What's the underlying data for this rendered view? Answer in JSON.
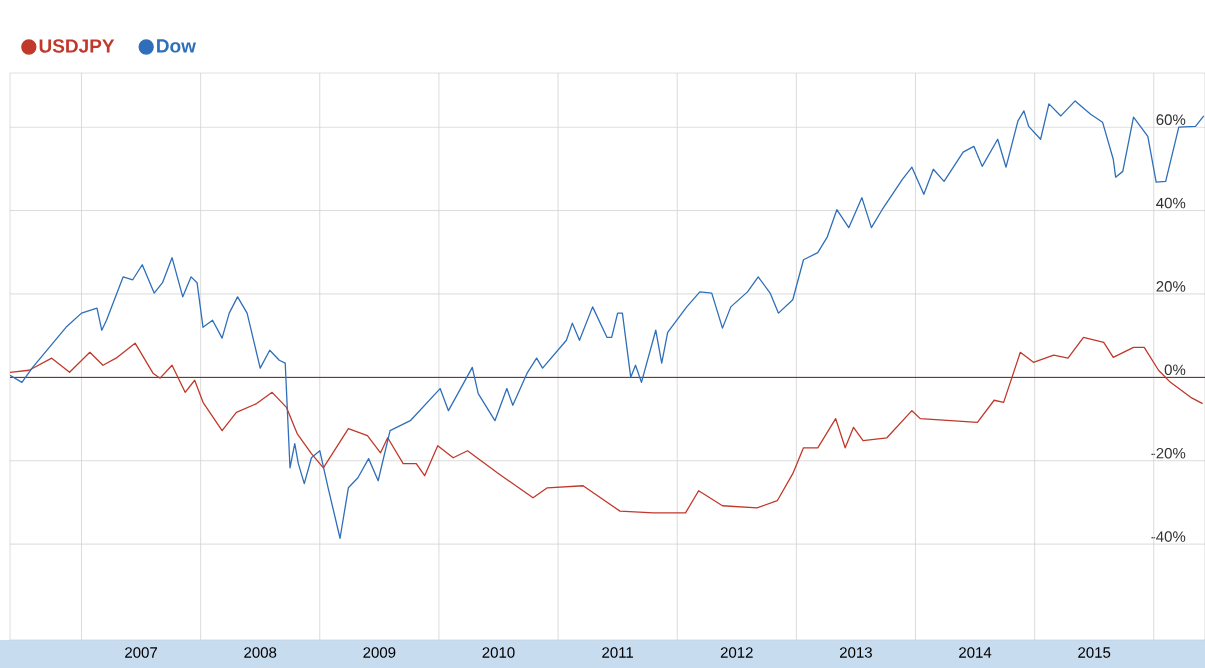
{
  "chart_data": {
    "type": "line",
    "xlim": [
      2006.4,
      2016.43
    ],
    "ylim": [
      -63,
      73
    ],
    "xticks": [
      {
        "value": 2007,
        "label": null
      },
      {
        "value": 2008,
        "label": null
      },
      {
        "value": 2009,
        "label": null
      },
      {
        "value": 2010,
        "label": null
      },
      {
        "value": 2011,
        "label": null
      },
      {
        "value": 2012,
        "label": null
      },
      {
        "value": 2013,
        "label": null
      },
      {
        "value": 2014,
        "label": null
      },
      {
        "value": 2015,
        "label": null
      },
      {
        "value": 2016,
        "label": null
      },
      {
        "value": 2007.5,
        "label": "2007"
      },
      {
        "value": 2008.5,
        "label": "2008"
      },
      {
        "value": 2009.5,
        "label": "2009"
      },
      {
        "value": 2010.5,
        "label": "2010"
      },
      {
        "value": 2011.5,
        "label": "2011"
      },
      {
        "value": 2012.5,
        "label": "2012"
      },
      {
        "value": 2013.5,
        "label": "2013"
      },
      {
        "value": 2014.5,
        "label": "2014"
      },
      {
        "value": 2015.5,
        "label": "2015"
      }
    ],
    "yticks": [
      {
        "value": -40,
        "label": "-40%"
      },
      {
        "value": -20,
        "label": "-20%"
      },
      {
        "value": 0,
        "label": "0%"
      },
      {
        "value": 20,
        "label": "20%"
      },
      {
        "value": 40,
        "label": "40%"
      },
      {
        "value": 60,
        "label": "60%"
      }
    ],
    "grid": true,
    "legend": "top left",
    "ref_lines": [
      {
        "axis": "y",
        "value": 0,
        "color": "#6b3a3a"
      }
    ],
    "series": [
      {
        "name": "USDJPY",
        "color": "#c0392b",
        "x": [
          2006.4,
          2006.56,
          2006.75,
          2006.9,
          2007.07,
          2007.18,
          2007.29,
          2007.45,
          2007.6,
          2007.66,
          2007.76,
          2007.87,
          2007.95,
          2008.02,
          2008.18,
          2008.3,
          2008.47,
          2008.6,
          2008.72,
          2008.81,
          2008.93,
          2009.03,
          2009.24,
          2009.4,
          2009.51,
          2009.57,
          2009.7,
          2009.81,
          2009.88,
          2009.99,
          2010.12,
          2010.24,
          2010.49,
          2010.79,
          2010.91,
          2011.21,
          2011.52,
          2011.8,
          2012.07,
          2012.18,
          2012.38,
          2012.67,
          2012.84,
          2012.97,
          2013.06,
          2013.18,
          2013.33,
          2013.41,
          2013.48,
          2013.56,
          2013.76,
          2013.97,
          2014.04,
          2014.52,
          2014.66,
          2014.74,
          2014.88,
          2014.99,
          2015.16,
          2015.28,
          2015.41,
          2015.58,
          2015.66,
          2015.83,
          2015.92,
          2016.04,
          2016.14,
          2016.31,
          2016.41
        ],
        "values": [
          1.2,
          1.7,
          4.6,
          1.2,
          6.0,
          2.9,
          4.6,
          8.2,
          1.0,
          -0.2,
          2.9,
          -3.6,
          -0.7,
          -6.0,
          -12.8,
          -8.4,
          -6.3,
          -3.6,
          -7.2,
          -13.5,
          -18.3,
          -21.7,
          -12.3,
          -14.0,
          -18.1,
          -14.5,
          -20.7,
          -20.7,
          -23.6,
          -16.4,
          -19.3,
          -17.6,
          -22.9,
          -28.9,
          -26.5,
          -26.0,
          -32.1,
          -32.5,
          -32.5,
          -27.2,
          -30.8,
          -31.3,
          -29.6,
          -23.1,
          -16.9,
          -16.9,
          -9.9,
          -16.9,
          -12.0,
          -15.2,
          -14.5,
          -8.0,
          -9.9,
          -10.8,
          -5.5,
          -6.0,
          6.0,
          3.6,
          5.3,
          4.6,
          9.6,
          8.4,
          4.8,
          7.2,
          7.2,
          1.7,
          -1.2,
          -4.8,
          -6.3
        ]
      },
      {
        "name": "Dow",
        "color": "#2f6fba",
        "x": [
          2006.4,
          2006.5,
          2006.59,
          2006.73,
          2006.87,
          2007.0,
          2007.13,
          2007.17,
          2007.21,
          2007.35,
          2007.43,
          2007.51,
          2007.61,
          2007.68,
          2007.76,
          2007.85,
          2007.92,
          2007.97,
          2008.02,
          2008.1,
          2008.18,
          2008.24,
          2008.31,
          2008.39,
          2008.5,
          2008.58,
          2008.66,
          2008.71,
          2008.75,
          2008.79,
          2008.82,
          2008.87,
          2008.93,
          2009.0,
          2009.07,
          2009.17,
          2009.24,
          2009.32,
          2009.41,
          2009.49,
          2009.59,
          2009.76,
          2010.01,
          2010.08,
          2010.28,
          2010.33,
          2010.47,
          2010.57,
          2010.62,
          2010.74,
          2010.82,
          2010.87,
          2011.07,
          2011.12,
          2011.18,
          2011.29,
          2011.41,
          2011.45,
          2011.5,
          2011.54,
          2011.61,
          2011.65,
          2011.7,
          2011.82,
          2011.87,
          2011.92,
          2012.08,
          2012.19,
          2012.29,
          2012.38,
          2012.45,
          2012.59,
          2012.68,
          2012.78,
          2012.85,
          2012.97,
          2013.06,
          2013.18,
          2013.26,
          2013.34,
          2013.44,
          2013.55,
          2013.63,
          2013.72,
          2013.89,
          2013.97,
          2014.07,
          2014.15,
          2014.24,
          2014.4,
          2014.49,
          2014.56,
          2014.69,
          2014.76,
          2014.86,
          2014.91,
          2014.95,
          2015.05,
          2015.12,
          2015.22,
          2015.34,
          2015.47,
          2015.57,
          2015.66,
          2015.68,
          2015.74,
          2015.83,
          2015.95,
          2016.02,
          2016.1,
          2016.21,
          2016.35,
          2016.42
        ],
        "values": [
          0.5,
          -1.2,
          2.4,
          7.2,
          12.0,
          15.4,
          16.6,
          11.3,
          13.7,
          24.1,
          23.4,
          27.0,
          20.2,
          22.7,
          28.7,
          19.3,
          24.1,
          22.7,
          12.0,
          13.7,
          9.4,
          15.4,
          19.3,
          15.4,
          2.2,
          6.5,
          4.1,
          3.4,
          -21.7,
          -15.9,
          -20.7,
          -25.5,
          -19.3,
          -17.6,
          -26.5,
          -38.6,
          -26.5,
          -24.1,
          -19.5,
          -24.8,
          -12.8,
          -10.4,
          -2.7,
          -8.0,
          2.4,
          -3.9,
          -10.4,
          -2.7,
          -6.7,
          1.0,
          4.6,
          2.2,
          8.9,
          13.0,
          8.9,
          16.9,
          9.6,
          9.6,
          15.4,
          15.4,
          0.0,
          2.9,
          -1.2,
          11.3,
          3.4,
          10.8,
          16.9,
          20.5,
          20.2,
          11.8,
          16.9,
          20.5,
          24.1,
          20.2,
          15.4,
          18.6,
          28.2,
          29.9,
          33.7,
          40.2,
          35.9,
          43.1,
          35.9,
          40.2,
          47.5,
          50.4,
          43.9,
          49.9,
          47.0,
          54.0,
          55.4,
          50.6,
          57.1,
          50.4,
          61.5,
          63.9,
          60.2,
          57.1,
          65.6,
          62.7,
          66.3,
          63.1,
          61.2,
          52.3,
          48.0,
          49.4,
          62.4,
          57.8,
          46.8,
          47.0,
          60.0,
          60.2,
          62.7
        ]
      }
    ]
  }
}
